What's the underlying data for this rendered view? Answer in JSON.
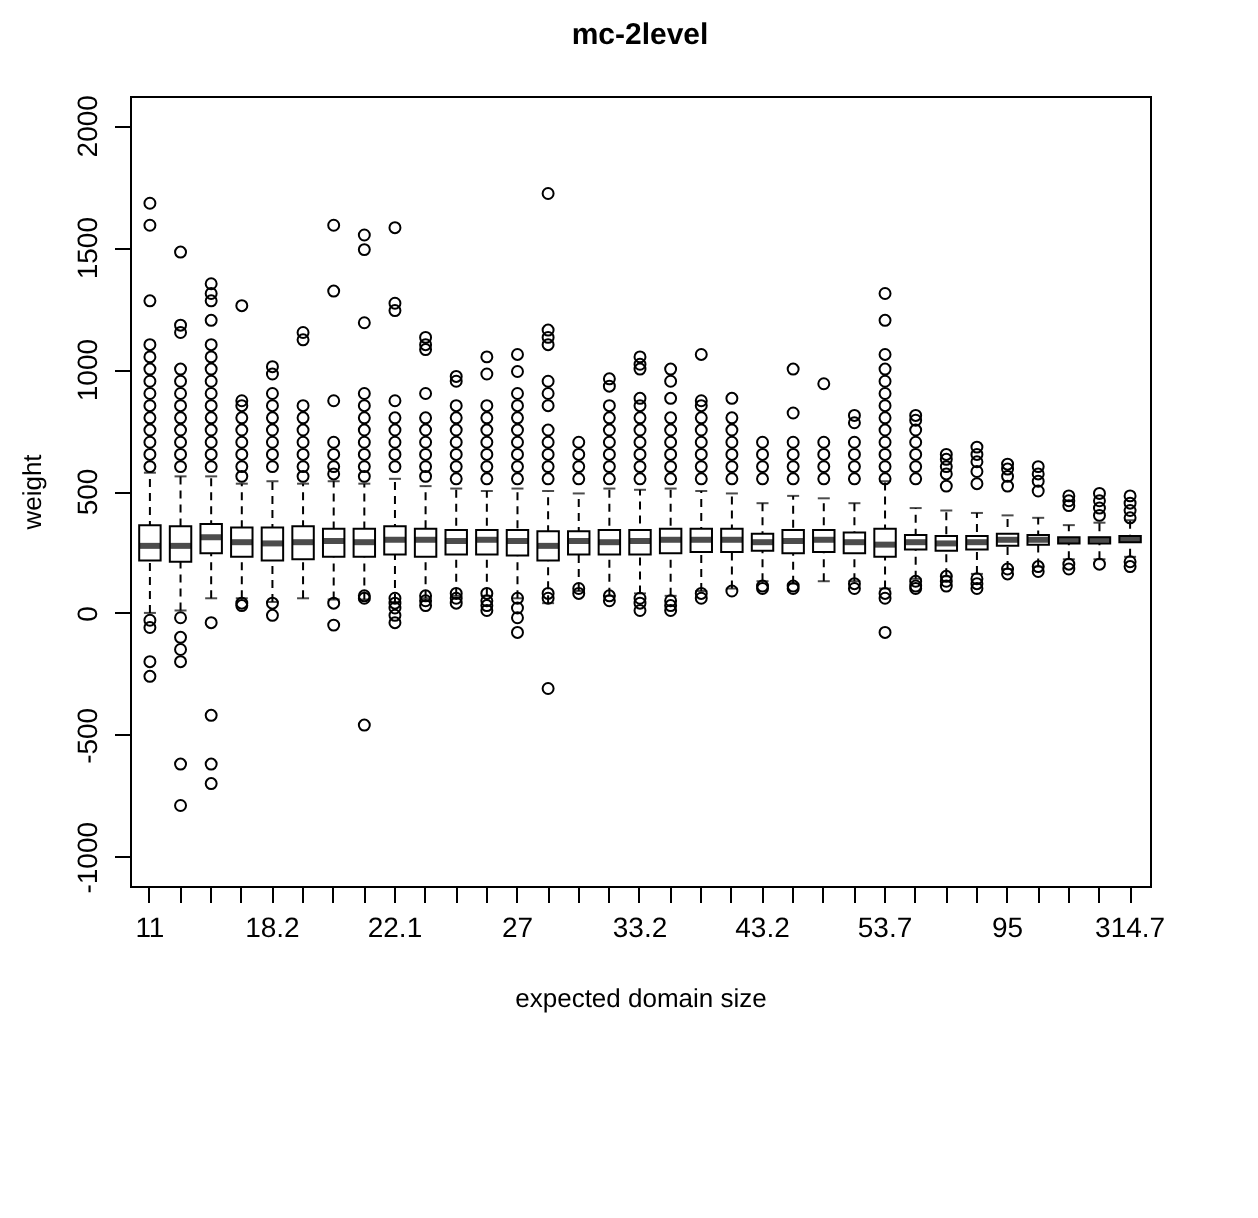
{
  "chart_data": {
    "type": "box",
    "title": "mc-2level",
    "xlabel": "expected domain size",
    "ylabel": "weight",
    "categories": [
      "11",
      null,
      null,
      null,
      "18.2",
      null,
      null,
      null,
      "22.1",
      null,
      null,
      null,
      "27",
      null,
      null,
      null,
      "33.2",
      null,
      null,
      null,
      "43.2",
      null,
      null,
      null,
      "53.7",
      null,
      null,
      null,
      "95",
      null,
      null,
      null,
      "314.7"
    ],
    "ylim": [
      -1120,
      2120
    ],
    "yticks": [
      -1000,
      -500,
      0,
      500,
      1000,
      1500,
      2000
    ],
    "grid": false,
    "marker": "circle",
    "boxes": [
      {
        "low": 0,
        "q1": 215,
        "median": 275,
        "q3": 360,
        "high": 575,
        "outliers": [
          1680,
          1590,
          1280,
          1100,
          1050,
          1000,
          950,
          900,
          850,
          800,
          750,
          700,
          650,
          600,
          -30,
          -60,
          -200,
          -260
        ]
      },
      {
        "low": 10,
        "q1": 210,
        "median": 275,
        "q3": 355,
        "high": 560,
        "outliers": [
          1480,
          1180,
          1150,
          1000,
          950,
          900,
          850,
          800,
          750,
          700,
          650,
          600,
          -20,
          -100,
          -150,
          -200,
          -620,
          -790
        ]
      },
      {
        "low": 60,
        "q1": 245,
        "median": 310,
        "q3": 365,
        "high": 560,
        "outliers": [
          1350,
          1310,
          1280,
          1200,
          1100,
          1050,
          1000,
          950,
          900,
          850,
          800,
          750,
          700,
          650,
          600,
          -40,
          -420,
          -620,
          -700
        ]
      },
      {
        "low": 60,
        "q1": 230,
        "median": 290,
        "q3": 350,
        "high": 530,
        "outliers": [
          1260,
          870,
          850,
          800,
          750,
          700,
          650,
          600,
          560,
          40,
          30
        ]
      },
      {
        "low": 45,
        "q1": 215,
        "median": 285,
        "q3": 350,
        "high": 540,
        "outliers": [
          1010,
          980,
          900,
          850,
          800,
          750,
          700,
          650,
          600,
          40,
          -10
        ]
      },
      {
        "low": 60,
        "q1": 220,
        "median": 290,
        "q3": 355,
        "high": 530,
        "outliers": [
          1150,
          1120,
          850,
          800,
          750,
          700,
          650,
          600,
          560
        ]
      },
      {
        "low": 55,
        "q1": 230,
        "median": 295,
        "q3": 345,
        "high": 540,
        "outliers": [
          1590,
          1320,
          870,
          700,
          650,
          600,
          570,
          40,
          -50
        ]
      },
      {
        "low": 55,
        "q1": 230,
        "median": 290,
        "q3": 345,
        "high": 530,
        "outliers": [
          1550,
          1490,
          1190,
          900,
          850,
          800,
          750,
          700,
          650,
          600,
          560,
          70,
          60,
          -460
        ]
      },
      {
        "low": 45,
        "q1": 240,
        "median": 300,
        "q3": 355,
        "high": 550,
        "outliers": [
          1580,
          1270,
          1240,
          870,
          800,
          750,
          700,
          650,
          600,
          60,
          40,
          20,
          -10,
          -40
        ]
      },
      {
        "low": 60,
        "q1": 230,
        "median": 300,
        "q3": 345,
        "high": 520,
        "outliers": [
          1130,
          1100,
          1080,
          900,
          800,
          750,
          700,
          650,
          600,
          560,
          70,
          50,
          30
        ]
      },
      {
        "low": 70,
        "q1": 240,
        "median": 295,
        "q3": 340,
        "high": 510,
        "outliers": [
          970,
          950,
          850,
          800,
          750,
          700,
          650,
          600,
          550,
          80,
          60,
          40
        ]
      },
      {
        "low": 70,
        "q1": 240,
        "median": 300,
        "q3": 340,
        "high": 500,
        "outliers": [
          1050,
          980,
          850,
          800,
          750,
          700,
          650,
          600,
          550,
          80,
          50,
          30,
          10
        ]
      },
      {
        "low": 60,
        "q1": 235,
        "median": 295,
        "q3": 340,
        "high": 510,
        "outliers": [
          1060,
          990,
          900,
          850,
          800,
          750,
          700,
          650,
          600,
          550,
          60,
          20,
          -20,
          -80
        ]
      },
      {
        "low": 40,
        "q1": 215,
        "median": 275,
        "q3": 335,
        "high": 500,
        "outliers": [
          1720,
          1160,
          1130,
          1100,
          950,
          900,
          850,
          750,
          700,
          650,
          600,
          550,
          80,
          60,
          -310
        ]
      },
      {
        "low": 90,
        "q1": 240,
        "median": 295,
        "q3": 335,
        "high": 490,
        "outliers": [
          700,
          650,
          600,
          550,
          100,
          80
        ]
      },
      {
        "low": 70,
        "q1": 240,
        "median": 290,
        "q3": 340,
        "high": 510,
        "outliers": [
          960,
          930,
          850,
          800,
          750,
          700,
          650,
          600,
          550,
          70,
          50
        ]
      },
      {
        "low": 80,
        "q1": 240,
        "median": 295,
        "q3": 340,
        "high": 505,
        "outliers": [
          1050,
          1020,
          1000,
          880,
          850,
          800,
          750,
          700,
          650,
          600,
          550,
          60,
          40,
          10
        ]
      },
      {
        "low": 70,
        "q1": 245,
        "median": 300,
        "q3": 345,
        "high": 510,
        "outliers": [
          1000,
          950,
          880,
          800,
          750,
          700,
          650,
          600,
          550,
          50,
          30,
          10
        ]
      },
      {
        "low": 90,
        "q1": 250,
        "median": 300,
        "q3": 345,
        "high": 500,
        "outliers": [
          1060,
          870,
          850,
          800,
          750,
          700,
          650,
          600,
          550,
          80,
          60
        ]
      },
      {
        "low": 100,
        "q1": 250,
        "median": 300,
        "q3": 345,
        "high": 490,
        "outliers": [
          880,
          800,
          750,
          700,
          650,
          600,
          550,
          90
        ]
      },
      {
        "low": 130,
        "q1": 255,
        "median": 290,
        "q3": 325,
        "high": 450,
        "outliers": [
          700,
          650,
          600,
          550,
          110,
          100
        ]
      },
      {
        "low": 120,
        "q1": 245,
        "median": 295,
        "q3": 340,
        "high": 480,
        "outliers": [
          1000,
          820,
          700,
          650,
          600,
          550,
          110,
          100
        ]
      },
      {
        "low": 130,
        "q1": 250,
        "median": 300,
        "q3": 340,
        "high": 470,
        "outliers": [
          940,
          700,
          650,
          600,
          550
        ]
      },
      {
        "low": 130,
        "q1": 245,
        "median": 290,
        "q3": 330,
        "high": 450,
        "outliers": [
          810,
          780,
          700,
          650,
          600,
          550,
          120,
          100
        ]
      },
      {
        "low": 100,
        "q1": 230,
        "median": 280,
        "q3": 345,
        "high": 540,
        "outliers": [
          1310,
          1200,
          1060,
          1000,
          950,
          900,
          850,
          800,
          750,
          700,
          650,
          600,
          550,
          80,
          60,
          -80
        ]
      },
      {
        "low": 140,
        "q1": 260,
        "median": 290,
        "q3": 320,
        "high": 430,
        "outliers": [
          810,
          790,
          750,
          700,
          650,
          600,
          550,
          130,
          110,
          100
        ]
      },
      {
        "low": 150,
        "q1": 255,
        "median": 285,
        "q3": 315,
        "high": 420,
        "outliers": [
          650,
          630,
          600,
          570,
          520,
          150,
          130,
          110
        ]
      },
      {
        "low": 160,
        "q1": 260,
        "median": 290,
        "q3": 315,
        "high": 410,
        "outliers": [
          680,
          650,
          620,
          580,
          530,
          140,
          120,
          100
        ]
      },
      {
        "low": 180,
        "q1": 275,
        "median": 300,
        "q3": 325,
        "high": 400,
        "outliers": [
          610,
          590,
          560,
          520,
          180,
          160
        ]
      },
      {
        "low": 190,
        "q1": 280,
        "median": 300,
        "q3": 320,
        "high": 390,
        "outliers": [
          600,
          570,
          540,
          500,
          190,
          170
        ]
      },
      {
        "low": 220,
        "q1": 285,
        "median": 295,
        "q3": 310,
        "high": 360,
        "outliers": [
          480,
          460,
          440,
          200,
          180
        ]
      },
      {
        "low": 220,
        "q1": 285,
        "median": 300,
        "q3": 310,
        "high": 370,
        "outliers": [
          490,
          460,
          430,
          400,
          200
        ]
      },
      {
        "low": 230,
        "q1": 290,
        "median": 300,
        "q3": 315,
        "high": 380,
        "outliers": [
          480,
          450,
          420,
          390,
          210,
          190
        ]
      }
    ]
  }
}
